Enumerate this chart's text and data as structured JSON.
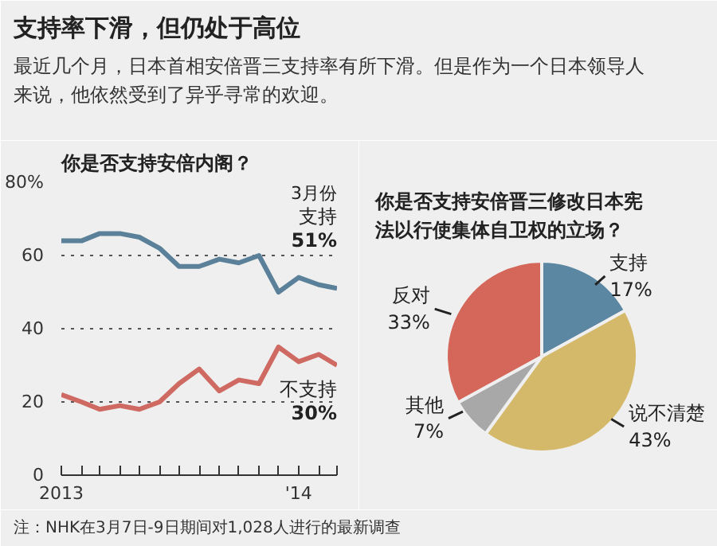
{
  "chart_data": [
    {
      "type": "other",
      "title": "支持率下滑，但仍处于高位",
      "subtitle": "最近几个月，日本首相安倍晋三支持率有所下滑。但是作为一个日本领导人来说，他依然受到了异乎寻常的欢迎。"
    },
    {
      "type": "line",
      "title": "你是否支持安倍内阁？",
      "x": [
        "2013-01",
        "2013-02",
        "2013-03",
        "2013-04",
        "2013-05",
        "2013-06",
        "2013-07",
        "2013-08",
        "2013-09",
        "2013-10",
        "2013-11",
        "2013-12",
        "2014-01",
        "2014-02",
        "2014-03"
      ],
      "series": [
        {
          "name": "支持",
          "color": "#5a8199",
          "values": [
            64,
            64,
            66,
            66,
            65,
            62,
            57,
            57,
            59,
            58,
            60,
            50,
            54,
            52,
            51
          ],
          "value_labels": [
            null,
            null,
            null,
            null,
            null,
            null,
            null,
            null,
            null,
            null,
            null,
            null,
            null,
            null,
            "51%"
          ]
        },
        {
          "name": "不支持",
          "color": "#cf6a63",
          "values": [
            22,
            20,
            18,
            19,
            18,
            20,
            25,
            29,
            23,
            26,
            25,
            35,
            31,
            33,
            30
          ],
          "value_labels": [
            null,
            null,
            null,
            null,
            null,
            null,
            null,
            null,
            null,
            null,
            null,
            null,
            null,
            null,
            "30%"
          ]
        }
      ],
      "xlim": [
        "2013-01",
        "2014-03"
      ],
      "xticks": [
        {
          "value": "2013-01",
          "label": "2013"
        },
        {
          "value": "2013-02",
          "label": null
        },
        {
          "value": "2013-03",
          "label": null
        },
        {
          "value": "2013-04",
          "label": null
        },
        {
          "value": "2013-05",
          "label": null
        },
        {
          "value": "2013-06",
          "label": null
        },
        {
          "value": "2013-07",
          "label": null
        },
        {
          "value": "2013-08",
          "label": null
        },
        {
          "value": "2013-09",
          "label": null
        },
        {
          "value": "2013-10",
          "label": null
        },
        {
          "value": "2013-11",
          "label": null
        },
        {
          "value": "2013-12",
          "label": null
        },
        {
          "value": "2014-01",
          "label": "'14"
        },
        {
          "value": "2014-02",
          "label": null
        },
        {
          "value": "2014-03",
          "label": null
        }
      ],
      "ylim": [
        0,
        80
      ],
      "yticks": [
        0,
        20,
        40,
        60,
        {
          "value": 80,
          "label": "80%"
        }
      ],
      "grid": "y",
      "line_style": "solid",
      "annotations": [
        "3月份",
        "注：NHK在3月7日-9日期间对1,028人进行的最新调查"
      ]
    },
    {
      "type": "pie",
      "title": "你是否支持安倍晋三修改日本宪法以行使集体自卫权的立场？",
      "categories": [
        "支持",
        "说不清楚",
        "其他",
        "反对"
      ],
      "values": [
        17,
        43,
        7,
        33
      ],
      "colors": [
        "#5b87a3",
        "#d5b96a",
        "#a8a8a8",
        "#d4665a"
      ],
      "value_labels": [
        "17%",
        "43%",
        "7%",
        "33%"
      ]
    }
  ]
}
